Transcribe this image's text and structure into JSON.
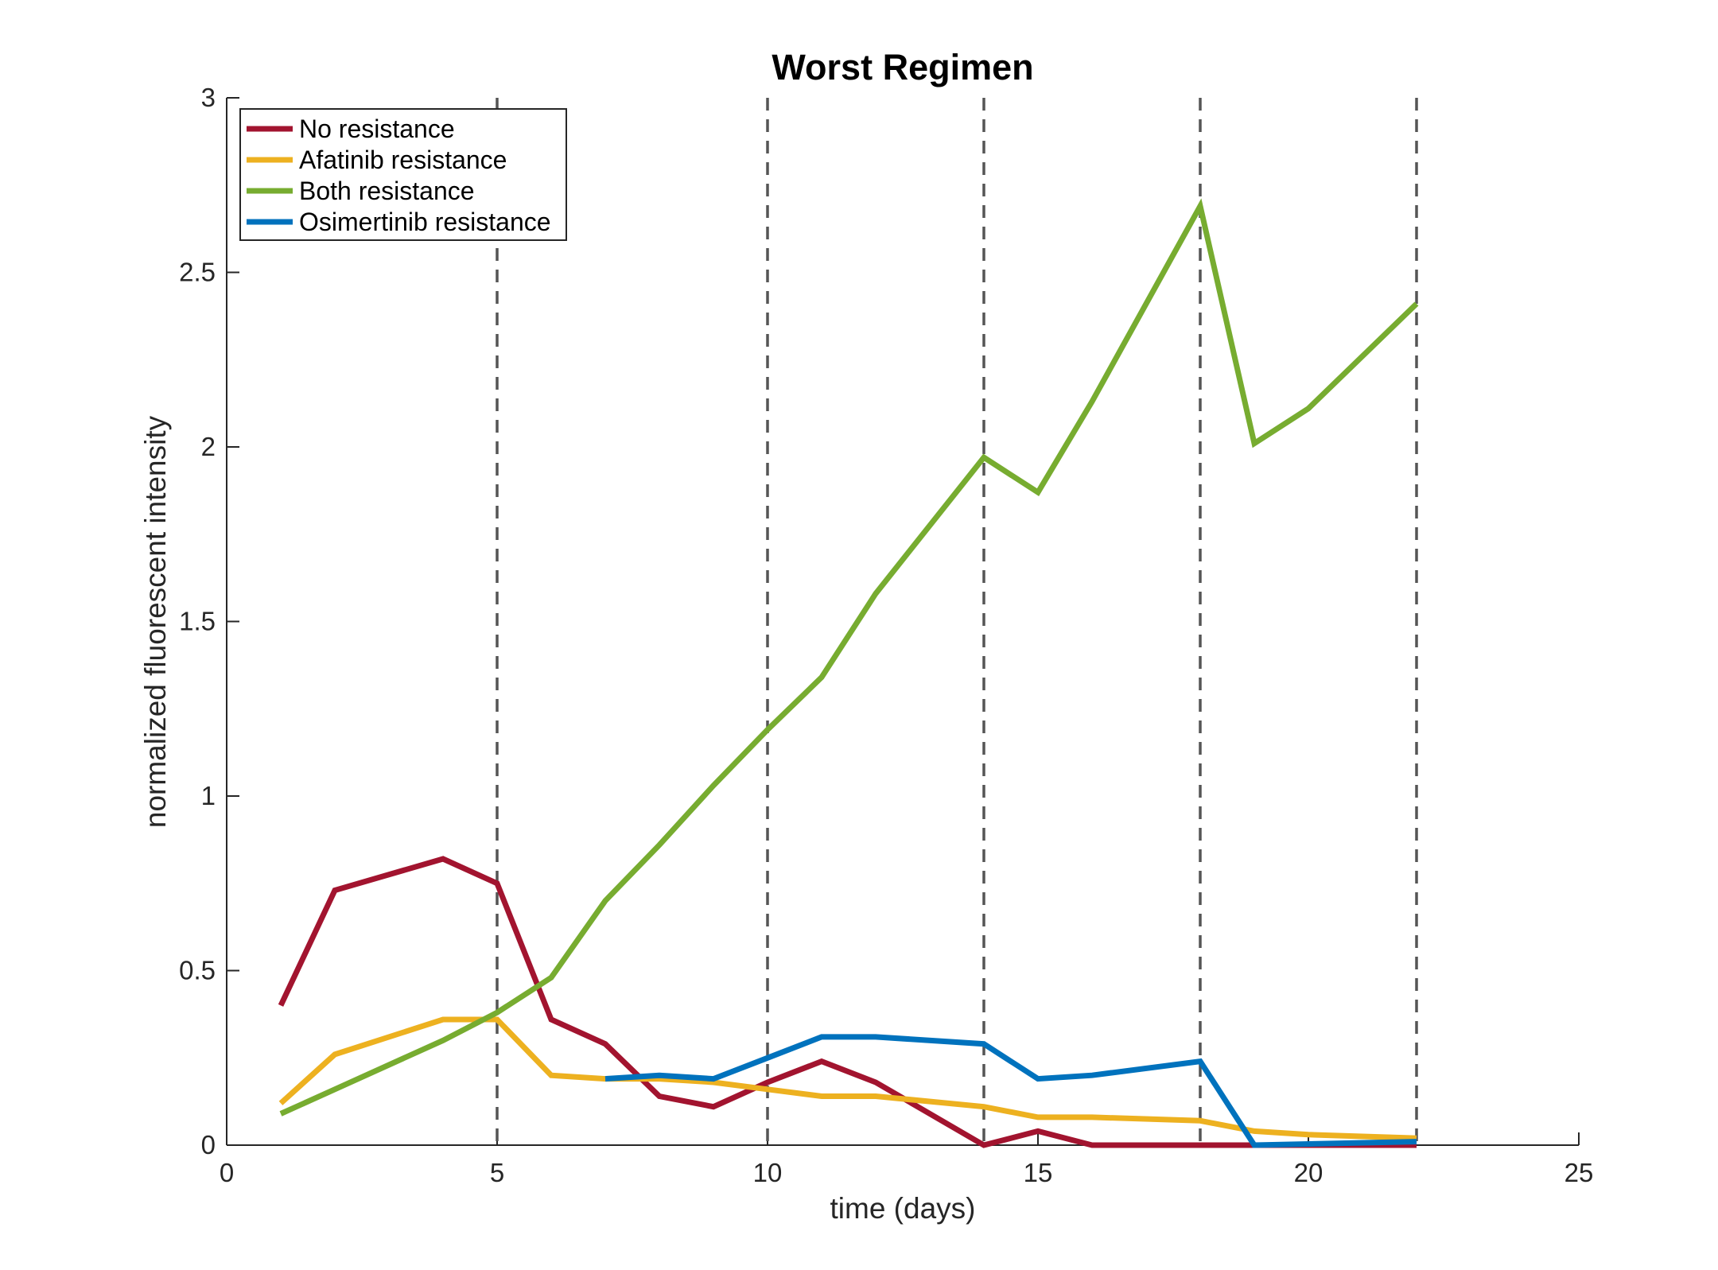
{
  "chart_data": {
    "type": "line",
    "title": "Worst Regimen",
    "xlabel": "time (days)",
    "ylabel": "normalized fluorescent intensity",
    "xlim": [
      0,
      25
    ],
    "ylim": [
      0,
      3
    ],
    "xticks": [
      0,
      5,
      10,
      15,
      20,
      25
    ],
    "yticks": [
      0,
      0.5,
      1,
      1.5,
      2,
      2.5,
      3
    ],
    "xtick_labels": [
      "0",
      "5",
      "10",
      "15",
      "20",
      "25"
    ],
    "ytick_labels": [
      "0",
      "0.5",
      "1",
      "1.5",
      "2",
      "2.5",
      "3"
    ],
    "grid": false,
    "legend_position": "top-left",
    "vertical_dashed_lines": [
      5,
      10,
      14,
      18,
      22
    ],
    "series": [
      {
        "name": "No resistance",
        "color": "#A2142F",
        "x": [
          1,
          2,
          4,
          5,
          6,
          7,
          8,
          9,
          10,
          11,
          12,
          14,
          15,
          16,
          18,
          19,
          22
        ],
        "y": [
          0.4,
          0.73,
          0.82,
          0.75,
          0.36,
          0.29,
          0.14,
          0.11,
          0.18,
          0.24,
          0.18,
          0.0,
          0.04,
          0.0,
          0.0,
          0.0,
          0.0
        ]
      },
      {
        "name": "Afatinib resistance",
        "color": "#EDB120",
        "x": [
          1,
          2,
          4,
          5,
          6,
          7,
          8,
          9,
          10,
          11,
          12,
          14,
          15,
          16,
          18,
          19,
          20,
          22
        ],
        "y": [
          0.12,
          0.26,
          0.36,
          0.36,
          0.2,
          0.19,
          0.19,
          0.18,
          0.16,
          0.14,
          0.14,
          0.11,
          0.08,
          0.08,
          0.07,
          0.04,
          0.03,
          0.02
        ]
      },
      {
        "name": "Both resistance",
        "color": "#77AC30",
        "x": [
          1,
          2,
          4,
          5,
          6,
          7,
          8,
          9,
          10,
          11,
          12,
          14,
          15,
          16,
          18,
          19,
          20,
          22
        ],
        "y": [
          0.09,
          0.16,
          0.3,
          0.38,
          0.48,
          0.7,
          0.86,
          1.03,
          1.19,
          1.34,
          1.58,
          1.97,
          1.87,
          2.13,
          2.69,
          2.01,
          2.11,
          2.41
        ]
      },
      {
        "name": "Osimertinib resistance",
        "color": "#0072BD",
        "x": [
          7,
          8,
          9,
          10,
          11,
          12,
          14,
          15,
          16,
          18,
          19,
          22
        ],
        "y": [
          0.19,
          0.2,
          0.19,
          0.25,
          0.31,
          0.31,
          0.29,
          0.19,
          0.2,
          0.24,
          0.0,
          0.01
        ]
      }
    ]
  }
}
